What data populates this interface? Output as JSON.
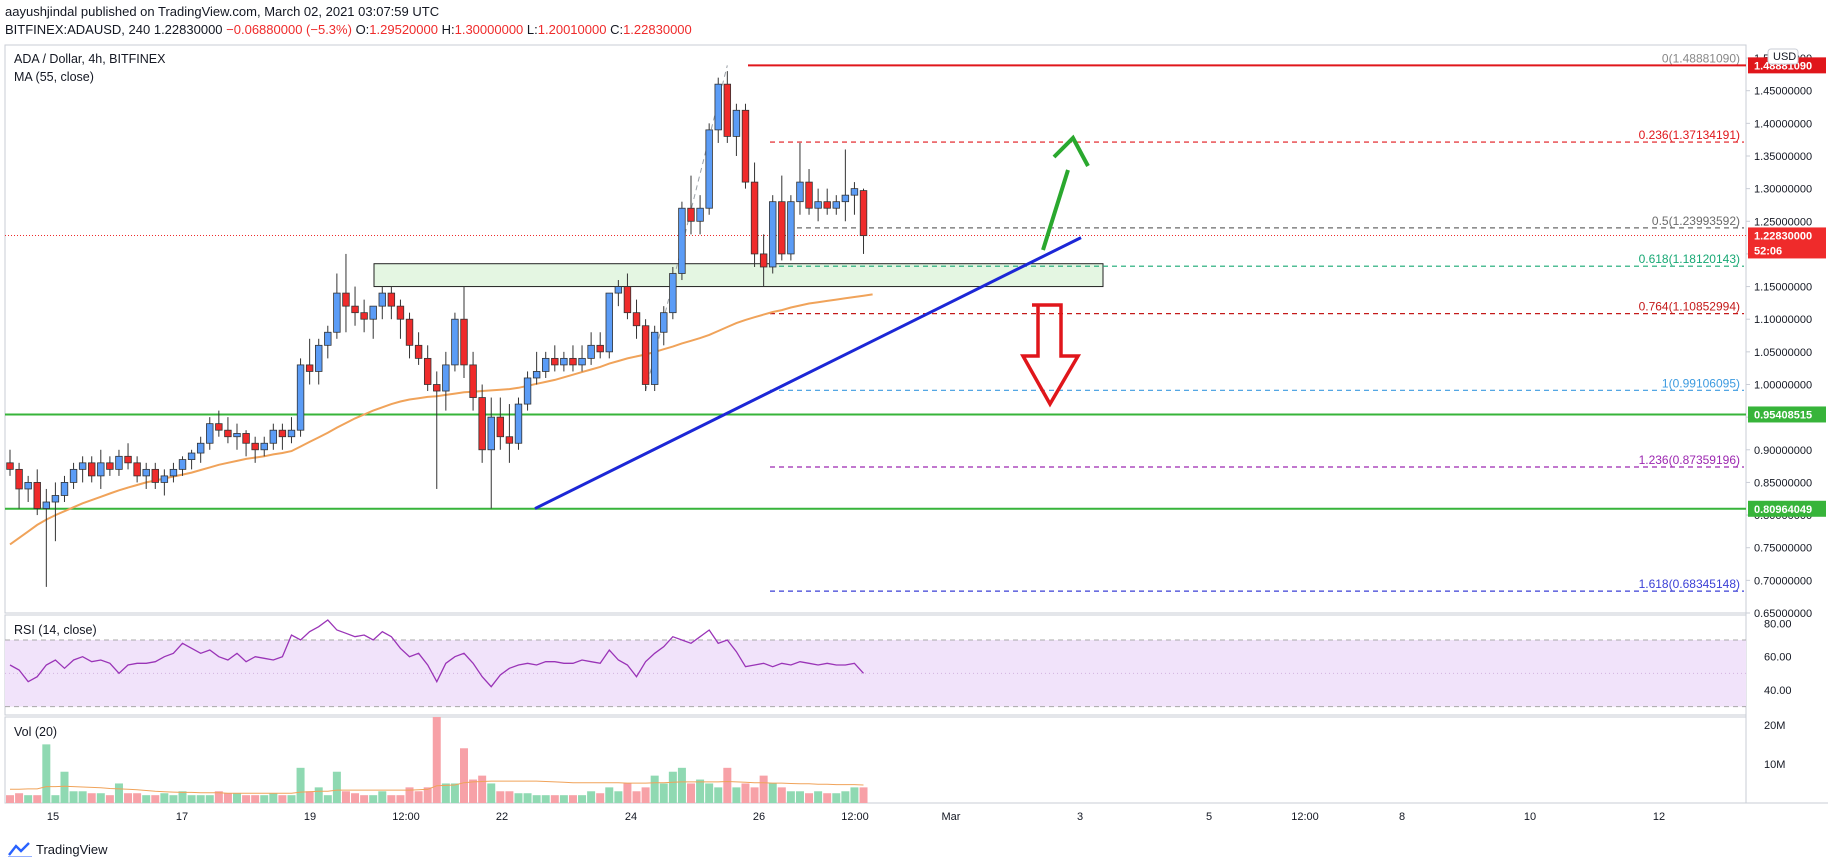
{
  "header": {
    "published": "aayushjindal published on TradingView.com, March 02, 2021 03:07:59 UTC",
    "symbol": "BITFINEX:ADAUSD, 240",
    "last": "1.22830000",
    "change": "−0.06880000 (−5.3%)",
    "o_label": "O:",
    "o_value": "1.29520000",
    "h_label": "H:",
    "h_value": "1.30000000",
    "l_label": "L:",
    "l_value": "1.20010000",
    "c_label": "C:",
    "c_value": "1.22830000"
  },
  "footer": {
    "brand": "TradingView"
  },
  "colors": {
    "up": "#5b9cf6",
    "down": "#ef2b2b",
    "ma": "#f0a35a",
    "trend": "#1c27d6",
    "support": "#37b43a",
    "resistance": "#e0161b",
    "rsi": "#9a34b7",
    "vol_up": "#8fd9b2",
    "vol_down": "#f7a1a7",
    "arrow_up": "#2aa82e",
    "arrow_down": "#e0161b",
    "zone": "#d9f2d6"
  },
  "chart_data": [
    {
      "type": "candlestick",
      "title": "ADA / Dollar, 4h, BITFINEX",
      "indicator": "MA (55, close)",
      "currency_label": "USD",
      "xaxis_labels": [
        "15",
        "17",
        "19",
        "12:00",
        "22",
        "24",
        "26",
        "12:00",
        "Mar",
        "3",
        "5",
        "12:00",
        "8",
        "10",
        "12"
      ],
      "ylim": [
        0.65,
        1.52
      ],
      "yticks": [
        0.65,
        0.7,
        0.75,
        0.8,
        0.85,
        0.9,
        0.95,
        1.0,
        1.05,
        1.1,
        1.15,
        1.2,
        1.25,
        1.3,
        1.35,
        1.4,
        1.45,
        1.5
      ],
      "ytick_labels": [
        "0.65000000",
        "0.70000000",
        "0.75000000",
        "0.80000000",
        "0.85000000",
        "0.90000000",
        "0.95000000",
        "1.00000000",
        "1.05000000",
        "1.10000000",
        "1.15000000",
        "1.20000000",
        "1.25000000",
        "1.30000000",
        "1.35000000",
        "1.40000000",
        "1.45000000",
        "1.50000000"
      ],
      "candles_ohlc": [
        [
          0.88,
          0.9,
          0.86,
          0.87
        ],
        [
          0.87,
          0.88,
          0.81,
          0.84
        ],
        [
          0.84,
          0.86,
          0.82,
          0.85
        ],
        [
          0.85,
          0.87,
          0.8,
          0.81
        ],
        [
          0.81,
          0.84,
          0.69,
          0.82
        ],
        [
          0.82,
          0.85,
          0.76,
          0.83
        ],
        [
          0.83,
          0.86,
          0.82,
          0.85
        ],
        [
          0.85,
          0.88,
          0.84,
          0.87
        ],
        [
          0.87,
          0.89,
          0.85,
          0.88
        ],
        [
          0.88,
          0.89,
          0.85,
          0.86
        ],
        [
          0.86,
          0.9,
          0.84,
          0.88
        ],
        [
          0.88,
          0.89,
          0.86,
          0.87
        ],
        [
          0.87,
          0.9,
          0.86,
          0.89
        ],
        [
          0.89,
          0.91,
          0.87,
          0.88
        ],
        [
          0.88,
          0.89,
          0.85,
          0.86
        ],
        [
          0.86,
          0.88,
          0.84,
          0.87
        ],
        [
          0.87,
          0.88,
          0.84,
          0.85
        ],
        [
          0.85,
          0.87,
          0.83,
          0.86
        ],
        [
          0.86,
          0.88,
          0.85,
          0.87
        ],
        [
          0.87,
          0.89,
          0.86,
          0.885
        ],
        [
          0.885,
          0.9,
          0.87,
          0.895
        ],
        [
          0.895,
          0.92,
          0.88,
          0.91
        ],
        [
          0.91,
          0.95,
          0.9,
          0.94
        ],
        [
          0.94,
          0.96,
          0.92,
          0.93
        ],
        [
          0.93,
          0.95,
          0.91,
          0.92
        ],
        [
          0.92,
          0.94,
          0.9,
          0.925
        ],
        [
          0.925,
          0.93,
          0.89,
          0.91
        ],
        [
          0.91,
          0.92,
          0.88,
          0.9
        ],
        [
          0.9,
          0.92,
          0.89,
          0.91
        ],
        [
          0.91,
          0.94,
          0.9,
          0.93
        ],
        [
          0.93,
          0.94,
          0.9,
          0.92
        ],
        [
          0.92,
          0.95,
          0.91,
          0.93
        ],
        [
          0.93,
          1.04,
          0.92,
          1.03
        ],
        [
          1.03,
          1.07,
          1.0,
          1.02
        ],
        [
          1.02,
          1.07,
          1.0,
          1.06
        ],
        [
          1.06,
          1.09,
          1.04,
          1.08
        ],
        [
          1.08,
          1.17,
          1.07,
          1.14
        ],
        [
          1.14,
          1.2,
          1.08,
          1.12
        ],
        [
          1.12,
          1.15,
          1.09,
          1.11
        ],
        [
          1.11,
          1.13,
          1.08,
          1.1
        ],
        [
          1.1,
          1.12,
          1.07,
          1.12
        ],
        [
          1.12,
          1.15,
          1.1,
          1.14
        ],
        [
          1.14,
          1.15,
          1.1,
          1.12
        ],
        [
          1.12,
          1.13,
          1.07,
          1.1
        ],
        [
          1.1,
          1.11,
          1.04,
          1.06
        ],
        [
          1.06,
          1.08,
          1.03,
          1.04
        ],
        [
          1.04,
          1.06,
          0.99,
          1.0
        ],
        [
          1.0,
          1.02,
          0.84,
          0.99
        ],
        [
          0.99,
          1.05,
          0.96,
          1.03
        ],
        [
          1.03,
          1.11,
          1.02,
          1.1
        ],
        [
          1.1,
          1.15,
          1.01,
          1.03
        ],
        [
          1.03,
          1.05,
          0.96,
          0.98
        ],
        [
          0.98,
          1.0,
          0.88,
          0.9
        ],
        [
          0.9,
          0.98,
          0.81,
          0.95
        ],
        [
          0.95,
          0.98,
          0.9,
          0.92
        ],
        [
          0.92,
          0.97,
          0.88,
          0.91
        ],
        [
          0.91,
          0.98,
          0.9,
          0.97
        ],
        [
          0.97,
          1.02,
          0.96,
          1.01
        ],
        [
          1.01,
          1.05,
          1.0,
          1.02
        ],
        [
          1.02,
          1.05,
          1.01,
          1.04
        ],
        [
          1.04,
          1.06,
          1.02,
          1.03
        ],
        [
          1.03,
          1.05,
          1.02,
          1.04
        ],
        [
          1.04,
          1.06,
          1.02,
          1.03
        ],
        [
          1.03,
          1.06,
          1.02,
          1.04
        ],
        [
          1.04,
          1.08,
          1.03,
          1.06
        ],
        [
          1.06,
          1.08,
          1.04,
          1.05
        ],
        [
          1.05,
          1.14,
          1.04,
          1.14
        ],
        [
          1.14,
          1.16,
          1.12,
          1.15
        ],
        [
          1.15,
          1.17,
          1.1,
          1.11
        ],
        [
          1.11,
          1.13,
          1.07,
          1.09
        ],
        [
          1.09,
          1.1,
          0.99,
          1.0
        ],
        [
          1.0,
          1.09,
          0.99,
          1.08
        ],
        [
          1.08,
          1.12,
          1.06,
          1.11
        ],
        [
          1.11,
          1.18,
          1.1,
          1.17
        ],
        [
          1.17,
          1.28,
          1.16,
          1.27
        ],
        [
          1.27,
          1.32,
          1.23,
          1.25
        ],
        [
          1.25,
          1.29,
          1.23,
          1.27
        ],
        [
          1.27,
          1.4,
          1.26,
          1.39
        ],
        [
          1.39,
          1.47,
          1.37,
          1.46
        ],
        [
          1.46,
          1.48,
          1.37,
          1.38
        ],
        [
          1.38,
          1.43,
          1.35,
          1.42
        ],
        [
          1.42,
          1.43,
          1.3,
          1.31
        ],
        [
          1.31,
          1.34,
          1.18,
          1.2
        ],
        [
          1.2,
          1.23,
          1.15,
          1.18
        ],
        [
          1.18,
          1.29,
          1.17,
          1.28
        ],
        [
          1.28,
          1.32,
          1.19,
          1.2
        ],
        [
          1.2,
          1.29,
          1.19,
          1.28
        ],
        [
          1.28,
          1.37,
          1.26,
          1.31
        ],
        [
          1.31,
          1.33,
          1.26,
          1.27
        ],
        [
          1.27,
          1.3,
          1.25,
          1.28
        ],
        [
          1.28,
          1.3,
          1.26,
          1.27
        ],
        [
          1.27,
          1.29,
          1.26,
          1.28
        ],
        [
          1.28,
          1.36,
          1.25,
          1.29
        ],
        [
          1.29,
          1.31,
          1.26,
          1.3
        ],
        [
          1.297,
          1.3,
          1.2,
          1.228
        ]
      ],
      "ma55": [
        0.755,
        0.765,
        0.775,
        0.785,
        0.793,
        0.8,
        0.806,
        0.812,
        0.818,
        0.823,
        0.828,
        0.833,
        0.838,
        0.842,
        0.846,
        0.85,
        0.853,
        0.856,
        0.859,
        0.862,
        0.865,
        0.869,
        0.873,
        0.877,
        0.88,
        0.883,
        0.886,
        0.888,
        0.89,
        0.893,
        0.895,
        0.898,
        0.905,
        0.912,
        0.919,
        0.926,
        0.934,
        0.941,
        0.948,
        0.954,
        0.96,
        0.965,
        0.97,
        0.974,
        0.977,
        0.979,
        0.981,
        0.982,
        0.984,
        0.986,
        0.988,
        0.989,
        0.99,
        0.991,
        0.992,
        0.993,
        0.995,
        0.998,
        1.001,
        1.004,
        1.007,
        1.011,
        1.015,
        1.019,
        1.023,
        1.027,
        1.032,
        1.036,
        1.04,
        1.043,
        1.046,
        1.05,
        1.054,
        1.058,
        1.063,
        1.067,
        1.071,
        1.076,
        1.082,
        1.088,
        1.094,
        1.099,
        1.103,
        1.107,
        1.111,
        1.114,
        1.118,
        1.121,
        1.124,
        1.126,
        1.128,
        1.13,
        1.132,
        1.134,
        1.136,
        1.138
      ],
      "levels": [
        {
          "name": "0",
          "label": "0(1.48881090)",
          "value": 1.4888109,
          "color": "#888888"
        },
        {
          "name": "0.236",
          "label": "0.236(1.37134191)",
          "value": 1.37134191,
          "color": "#e0161b"
        },
        {
          "name": "0.5",
          "label": "0.5(1.23993592)",
          "value": 1.23993592,
          "color": "#6a6a6a"
        },
        {
          "name": "0.618",
          "label": "0.618(1.18120143)",
          "value": 1.18120143,
          "color": "#17a874"
        },
        {
          "name": "0.764",
          "label": "0.764(1.10852994)",
          "value": 1.10852994,
          "color": "#c41a1a"
        },
        {
          "name": "1",
          "label": "1(0.99106095)",
          "value": 0.99106095,
          "color": "#3d9be0"
        },
        {
          "name": "1.236",
          "label": "1.236(0.87359196)",
          "value": 0.87359196,
          "color": "#9c27b0"
        },
        {
          "name": "1.618",
          "label": "1.618(0.68345148)",
          "value": 0.68345148,
          "color": "#3a3fd6"
        }
      ],
      "price_tags": [
        {
          "text": "1.48881090",
          "value": 1.4888109,
          "color": "#e0161b"
        },
        {
          "text": "1.22830000",
          "value": 1.2283,
          "color": "#ef2b2b"
        },
        {
          "text": "52:06",
          "value": 1.2283,
          "color": "#ef2b2b"
        },
        {
          "text": "0.95408515",
          "value": 0.95408515,
          "color": "#37b43a"
        },
        {
          "text": "0.80964049",
          "value": 0.80964049,
          "color": "#37b43a"
        }
      ],
      "support_lines": [
        0.95408515,
        0.80964049
      ],
      "resistance_line": 1.4888109,
      "zone": [
        1.15,
        1.185
      ],
      "trendline": [
        [
          57,
          0.81
        ],
        [
          112,
          1.225
        ]
      ]
    },
    {
      "type": "line",
      "title": "RSI (14, close)",
      "ylim": [
        25,
        85
      ],
      "yticks": [
        40,
        60,
        80
      ],
      "ytick_labels": [
        "40.00",
        "60.00",
        "80.00"
      ],
      "bands": [
        30,
        70
      ],
      "values": [
        55,
        52,
        45,
        48,
        55,
        58,
        53,
        58,
        60,
        57,
        58,
        56,
        50,
        55,
        56,
        56,
        57,
        60,
        62,
        68,
        65,
        62,
        64,
        60,
        58,
        62,
        57,
        60,
        59,
        58,
        60,
        73,
        70,
        75,
        78,
        82,
        76,
        74,
        72,
        73,
        70,
        75,
        72,
        65,
        60,
        62,
        55,
        45,
        56,
        60,
        62,
        56,
        48,
        42,
        49,
        53,
        55,
        56,
        55,
        57,
        57,
        56,
        56,
        58,
        57,
        56,
        64,
        58,
        55,
        48,
        57,
        62,
        66,
        72,
        70,
        68,
        72,
        76,
        68,
        70,
        63,
        54,
        55,
        56,
        54,
        56,
        55,
        57,
        56,
        55,
        56,
        55,
        55,
        56,
        50
      ],
      "color": "#9a34b7"
    },
    {
      "type": "bar",
      "title": "Vol (20)",
      "ylim": [
        0,
        22
      ],
      "yticks": [
        10,
        20
      ],
      "ytick_labels": [
        "10M",
        "20M"
      ],
      "values": [
        2,
        2.5,
        2,
        2,
        15,
        2,
        8,
        3,
        3,
        2.5,
        2.5,
        2,
        5,
        2.5,
        2.5,
        2,
        2,
        2.5,
        2,
        3,
        2,
        2,
        2,
        3,
        2.5,
        2.5,
        2,
        2,
        2,
        2.5,
        2,
        2,
        9,
        3,
        4,
        2,
        8,
        3,
        2.5,
        2,
        2,
        3,
        2,
        2,
        4,
        3,
        4,
        22,
        5,
        5,
        14,
        6,
        7,
        5,
        3,
        3,
        2.5,
        2.5,
        2,
        2,
        2,
        2,
        2,
        2,
        3,
        2.5,
        4,
        3,
        5,
        3,
        4,
        7,
        5,
        8,
        9,
        5,
        6,
        5,
        4,
        9,
        4,
        5,
        4,
        7,
        5,
        4,
        3,
        3,
        2.5,
        3,
        2.5,
        2.5,
        3,
        4,
        4
      ],
      "ma": [
        3.5,
        3.5,
        3.6,
        3.6,
        4.2,
        4.2,
        4.3,
        4.2,
        4.1,
        4.0,
        3.9,
        3.7,
        3.6,
        3.5,
        3.4,
        3.2,
        3.0,
        2.9,
        2.8,
        2.7,
        2.7,
        2.6,
        2.6,
        2.6,
        2.5,
        2.5,
        2.5,
        2.5,
        2.5,
        2.5,
        2.5,
        2.5,
        2.8,
        2.9,
        3.0,
        3.0,
        3.3,
        3.3,
        3.3,
        3.3,
        3.3,
        3.3,
        3.3,
        3.3,
        3.3,
        3.4,
        3.5,
        4.4,
        4.5,
        4.6,
        5.2,
        5.4,
        5.5,
        5.6,
        5.6,
        5.6,
        5.6,
        5.6,
        5.6,
        5.5,
        5.4,
        5.3,
        5.2,
        5.2,
        5.2,
        5.2,
        5.2,
        5.2,
        5.1,
        5.1,
        5.1,
        5.2,
        5.2,
        5.3,
        5.4,
        5.4,
        5.4,
        5.4,
        5.4,
        5.5,
        5.4,
        5.3,
        5.2,
        5.2,
        5.1,
        5.1,
        5.0,
        4.9,
        4.9,
        4.8,
        4.8,
        4.7,
        4.7,
        4.7,
        4.6
      ]
    }
  ],
  "arrows": {
    "up": "green-arrow-up",
    "down": "red-arrow-down"
  }
}
